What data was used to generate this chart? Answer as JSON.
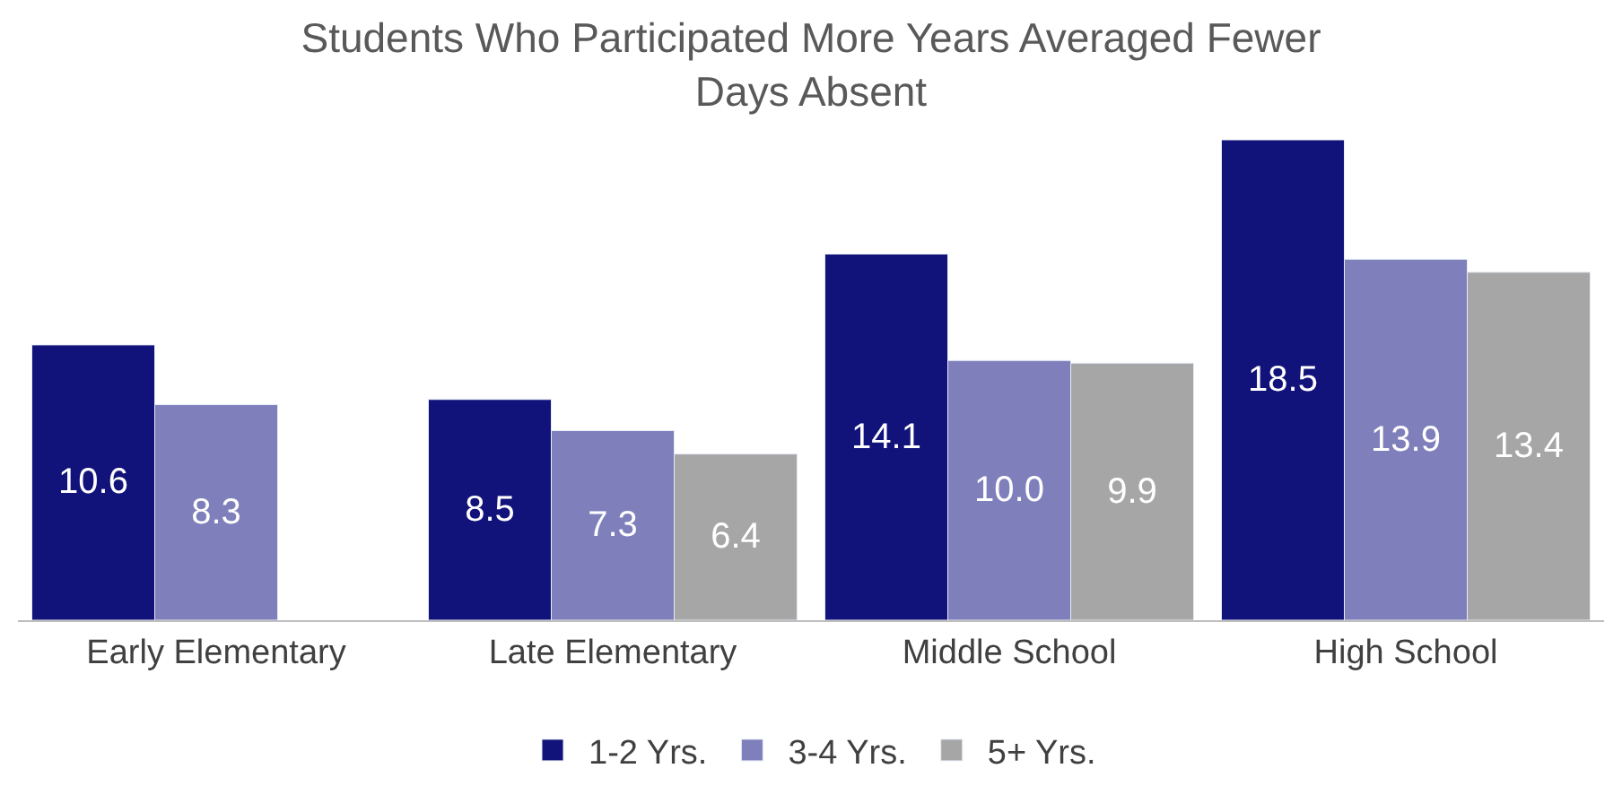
{
  "chart_data": {
    "type": "bar",
    "title": "Students Who Participated More Years Averaged Fewer Days Absent",
    "categories": [
      "Early Elementary",
      "Late Elementary",
      "Middle School",
      "High School"
    ],
    "series": [
      {
        "name": "1-2 Yrs.",
        "color": "#12137a",
        "values": [
          10.6,
          8.5,
          14.1,
          18.5
        ],
        "value_labels": [
          "10.6",
          "8.5",
          "14.1",
          "18.5"
        ]
      },
      {
        "name": "3-4 Yrs.",
        "color": "#7f7fbc",
        "values": [
          8.3,
          7.3,
          10.0,
          13.9
        ],
        "value_labels": [
          "8.3",
          "7.3",
          "10.0",
          "13.9"
        ]
      },
      {
        "name": "5+ Yrs.",
        "color": "#a6a6a6",
        "values": [
          null,
          6.4,
          9.9,
          13.4
        ],
        "value_labels": [
          null,
          "6.4",
          "9.9",
          "13.4"
        ]
      }
    ],
    "legend": "bottom"
  }
}
